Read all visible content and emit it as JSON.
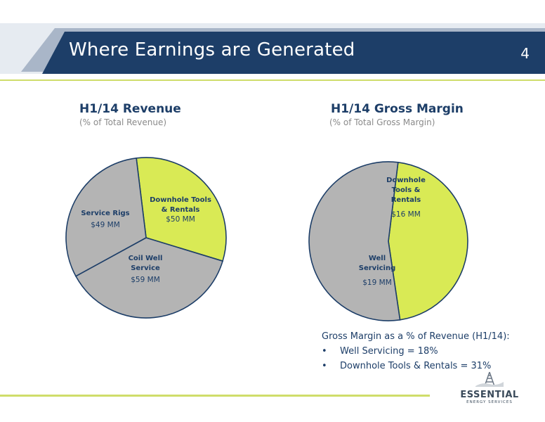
{
  "slide": {
    "title": "Where Earnings are Generated",
    "page_number": "4"
  },
  "colors": {
    "brand_dark": "#1d3e68",
    "accent_green": "#d9ea55",
    "slice_grey": "#b4b4b4"
  },
  "chart_data": [
    {
      "type": "pie",
      "title": "H1/14 Revenue",
      "subtitle": "(% of Total Revenue)",
      "slices": [
        {
          "label": "Downhole Tools & Rentals",
          "label_lines": [
            "Downhole Tools",
            "& Rentals"
          ],
          "value": 50,
          "value_label": "$50 MM",
          "color": "#d9ea55"
        },
        {
          "label": "Coil Well Service",
          "label_lines": [
            "Coil Well",
            "Service"
          ],
          "value": 59,
          "value_label": "$59 MM",
          "color": "#b4b4b4"
        },
        {
          "label": "Service Rigs",
          "label_lines": [
            "Service Rigs"
          ],
          "value": 49,
          "value_label": "$49 MM",
          "color": "#b4b4b4"
        }
      ]
    },
    {
      "type": "pie",
      "title": "H1/14 Gross Margin",
      "subtitle": "(% of Total Gross Margin)",
      "slices": [
        {
          "label": "Downhole Tools & Rentals",
          "label_lines": [
            "Downhole",
            "Tools &",
            "Rentals"
          ],
          "value": 16,
          "value_label": "$16 MM",
          "color": "#d9ea55"
        },
        {
          "label": "Well Servicing",
          "label_lines": [
            "Well",
            "Servicing"
          ],
          "value": 19,
          "value_label": "$19 MM",
          "color": "#b4b4b4"
        }
      ]
    }
  ],
  "note": {
    "heading": "Gross Margin as a % of Revenue (H1/14):",
    "items": [
      "Well Servicing = 18%",
      "Downhole Tools & Rentals = 31%"
    ]
  },
  "logo": {
    "name": "ESSENTIAL",
    "tagline": "ENERGY SERVICES"
  }
}
